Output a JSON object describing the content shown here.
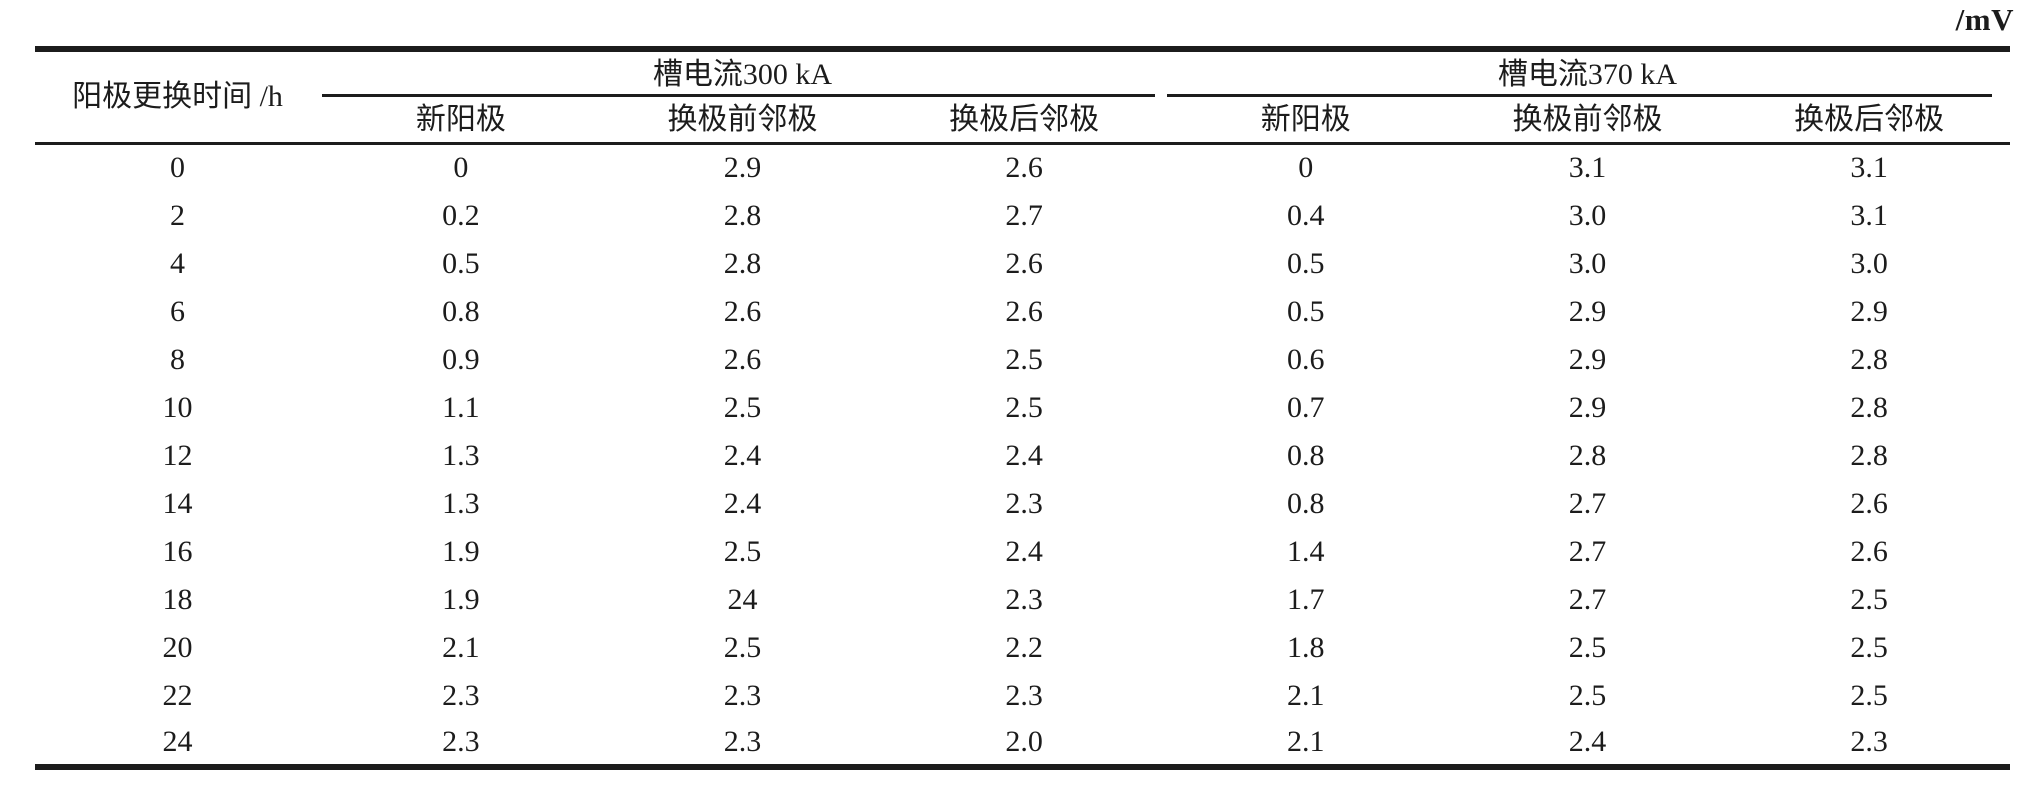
{
  "unit_label": "/mV",
  "table": {
    "row_header": "阳极更换时间 /h",
    "groups": [
      {
        "label": "槽电流300 kA",
        "columns": [
          "新阳极",
          "换极前邻极",
          "换极后邻极"
        ]
      },
      {
        "label": "槽电流370 kA",
        "columns": [
          "新阳极",
          "换极前邻极",
          "换极后邻极"
        ]
      }
    ],
    "rows": [
      {
        "time": "0",
        "values": [
          "0",
          "2.9",
          "2.6",
          "0",
          "3.1",
          "3.1"
        ]
      },
      {
        "time": "2",
        "values": [
          "0.2",
          "2.8",
          "2.7",
          "0.4",
          "3.0",
          "3.1"
        ]
      },
      {
        "time": "4",
        "values": [
          "0.5",
          "2.8",
          "2.6",
          "0.5",
          "3.0",
          "3.0"
        ]
      },
      {
        "time": "6",
        "values": [
          "0.8",
          "2.6",
          "2.6",
          "0.5",
          "2.9",
          "2.9"
        ]
      },
      {
        "time": "8",
        "values": [
          "0.9",
          "2.6",
          "2.5",
          "0.6",
          "2.9",
          "2.8"
        ]
      },
      {
        "time": "10",
        "values": [
          "1.1",
          "2.5",
          "2.5",
          "0.7",
          "2.9",
          "2.8"
        ]
      },
      {
        "time": "12",
        "values": [
          "1.3",
          "2.4",
          "2.4",
          "0.8",
          "2.8",
          "2.8"
        ]
      },
      {
        "time": "14",
        "values": [
          "1.3",
          "2.4",
          "2.3",
          "0.8",
          "2.7",
          "2.6"
        ]
      },
      {
        "time": "16",
        "values": [
          "1.9",
          "2.5",
          "2.4",
          "1.4",
          "2.7",
          "2.6"
        ]
      },
      {
        "time": "18",
        "values": [
          "1.9",
          "24",
          "2.3",
          "1.7",
          "2.7",
          "2.5"
        ]
      },
      {
        "time": "20",
        "values": [
          "2.1",
          "2.5",
          "2.2",
          "1.8",
          "2.5",
          "2.5"
        ]
      },
      {
        "time": "22",
        "values": [
          "2.3",
          "2.3",
          "2.3",
          "2.1",
          "2.5",
          "2.5"
        ]
      },
      {
        "time": "24",
        "values": [
          "2.3",
          "2.3",
          "2.0",
          "2.1",
          "2.4",
          "2.3"
        ]
      }
    ]
  },
  "chart_data": {
    "type": "table",
    "title": "",
    "unit": "/mV",
    "x": [
      0,
      2,
      4,
      6,
      8,
      10,
      12,
      14,
      16,
      18,
      20,
      22,
      24
    ],
    "xlabel": "阳极更换时间 /h",
    "series": [
      {
        "name": "槽电流300 kA 新阳极",
        "values": [
          0,
          0.2,
          0.5,
          0.8,
          0.9,
          1.1,
          1.3,
          1.3,
          1.9,
          1.9,
          2.1,
          2.3,
          2.3
        ]
      },
      {
        "name": "槽电流300 kA 换极前邻极",
        "values": [
          2.9,
          2.8,
          2.8,
          2.6,
          2.6,
          2.5,
          2.4,
          2.4,
          2.5,
          24,
          2.5,
          2.3,
          2.3
        ]
      },
      {
        "name": "槽电流300 kA 换极后邻极",
        "values": [
          2.6,
          2.7,
          2.6,
          2.6,
          2.5,
          2.5,
          2.4,
          2.3,
          2.4,
          2.3,
          2.2,
          2.3,
          2.0
        ]
      },
      {
        "name": "槽电流370 kA 新阳极",
        "values": [
          0,
          0.4,
          0.5,
          0.5,
          0.6,
          0.7,
          0.8,
          0.8,
          1.4,
          1.7,
          1.8,
          2.1,
          2.1
        ]
      },
      {
        "name": "槽电流370 kA 换极前邻极",
        "values": [
          3.1,
          3.0,
          3.0,
          2.9,
          2.9,
          2.9,
          2.8,
          2.7,
          2.7,
          2.7,
          2.5,
          2.5,
          2.4
        ]
      },
      {
        "name": "槽电流370 kA 换极后邻极",
        "values": [
          3.1,
          3.1,
          3.0,
          2.9,
          2.8,
          2.8,
          2.8,
          2.6,
          2.6,
          2.5,
          2.5,
          2.5,
          2.3
        ]
      }
    ]
  }
}
